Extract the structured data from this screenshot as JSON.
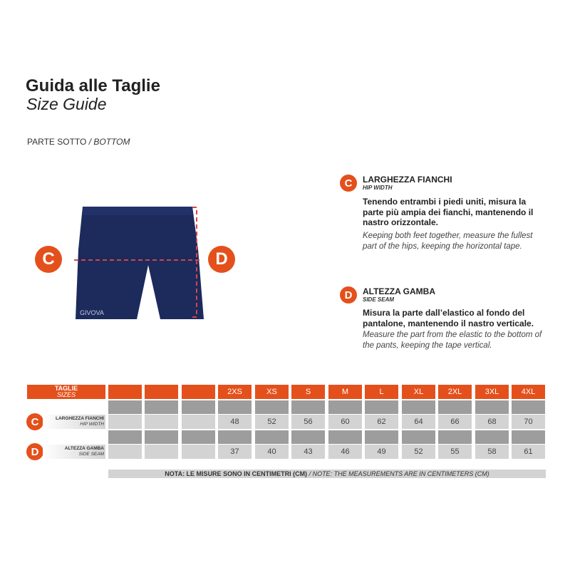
{
  "header": {
    "title": "Guida alle Taglie",
    "subtitle": "Size Guide",
    "section_it": "PARTE SOTTO",
    "section_sep": " / ",
    "section_en": "BOTTOM"
  },
  "product": {
    "brand": "GIVOVA"
  },
  "measures": [
    {
      "badge": "C",
      "title": "LARGHEZZA FIANCHI",
      "subtitle": "HIP WIDTH",
      "text_it": "Tenendo entrambi i piedi uniti, misura la parte più ampia dei fianchi, mantenendo il nastro orizzontale.",
      "text_en": "Keeping both feet together, measure the fullest part of the hips, keeping the horizontal tape."
    },
    {
      "badge": "D",
      "title": "ALTEZZA GAMBA",
      "subtitle": "SIDE SEAM",
      "text_it": "Misura la parte dall’elastico al fondo del pantalone, mantenendo il nastro verticale.",
      "text_en": "Measure the part from the elastic to the bottom of the pants, keeping the tape vertical."
    }
  ],
  "table": {
    "header_it": "TAGLIE",
    "header_en": "SIZES",
    "sizes": [
      "",
      "",
      "",
      "2XS",
      "XS",
      "S",
      "M",
      "L",
      "XL",
      "2XL",
      "3XL",
      "4XL"
    ],
    "rows": [
      {
        "badge": "C",
        "label_it": "LARGHEZZA FIANCHI",
        "label_en": "HIP WIDTH",
        "values": [
          "",
          "",
          "",
          "48",
          "52",
          "56",
          "60",
          "62",
          "64",
          "66",
          "68",
          "70"
        ]
      },
      {
        "badge": "D",
        "label_it": "ALTEZZA GAMBA",
        "label_en": "SIDE SEAM",
        "values": [
          "",
          "",
          "",
          "37",
          "40",
          "43",
          "46",
          "49",
          "52",
          "55",
          "58",
          "61"
        ]
      }
    ],
    "note_it": "NOTA: LE MISURE SONO IN CENTIMETRI (CM)",
    "note_en": " / NOTE: THE MEASUREMENTS ARE IN CENTIMETERS (CM)"
  },
  "colors": {
    "accent": "#e4501b",
    "navy": "#1c2a5c",
    "dark_gray": "#9d9d9d",
    "light_gray": "#d3d3d3"
  }
}
